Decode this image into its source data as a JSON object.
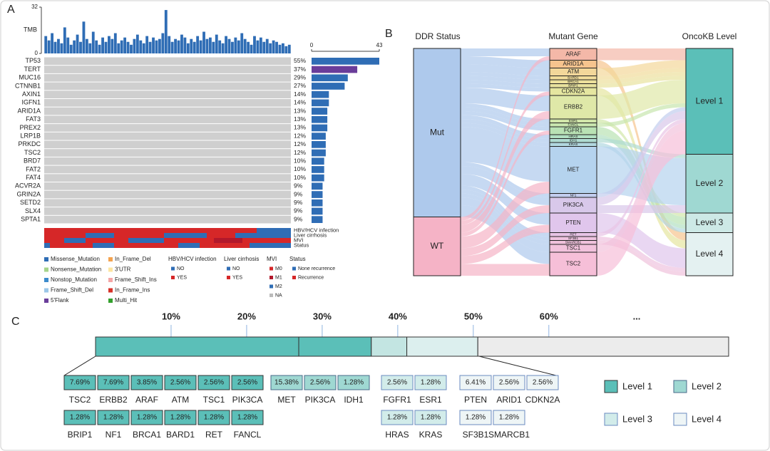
{
  "panel_labels": [
    "A",
    "B",
    "C"
  ],
  "chart_data": [
    {
      "type": "oncoplot",
      "tmb_label": "TMB",
      "tmb_ylim": [
        0,
        32
      ],
      "tmb_yticks": [
        0,
        32
      ],
      "tmb_color": "#2f6db5",
      "tmb_values": [
        12,
        9,
        14,
        8,
        10,
        7,
        18,
        11,
        6,
        9,
        13,
        8,
        22,
        10,
        7,
        15,
        9,
        6,
        11,
        8,
        12,
        10,
        14,
        7,
        9,
        11,
        8,
        6,
        10,
        13,
        9,
        7,
        12,
        8,
        11,
        9,
        10,
        14,
        30,
        12,
        8,
        10,
        9,
        13,
        11,
        7,
        10,
        8,
        12,
        9,
        15,
        10,
        11,
        8,
        13,
        9,
        7,
        12,
        10,
        8,
        11,
        9,
        14,
        10,
        8,
        6,
        12,
        9,
        11,
        8,
        10,
        7,
        9,
        8,
        6,
        7,
        5,
        6
      ],
      "genes": [
        "TP53",
        "TERT",
        "MUC16",
        "CTNNB1",
        "AXIN1",
        "IGFN1",
        "ARID1A",
        "FAT3",
        "PREX2",
        "LRP1B",
        "PRKDC",
        "TSC2",
        "BRD7",
        "FAT2",
        "FAT4",
        "ACVR2A",
        "GRIN2A",
        "SETD2",
        "SLX4",
        "SPTA1"
      ],
      "values": [
        55,
        37,
        29,
        27,
        14,
        14,
        13,
        13,
        13,
        12,
        12,
        12,
        10,
        10,
        10,
        9,
        9,
        9,
        9,
        9
      ],
      "value_labels": [
        "55%",
        "37%",
        "29%",
        "27%",
        "14%",
        "14%",
        "13%",
        "13%",
        "13%",
        "12%",
        "12%",
        "12%",
        "10%",
        "10%",
        "10%",
        "9%",
        "9%",
        "9%",
        "9%",
        "9%"
      ],
      "counts": [
        43,
        29,
        23,
        21,
        11,
        11,
        10,
        10,
        10,
        9,
        9,
        9,
        8,
        8,
        8,
        7,
        7,
        7,
        7,
        7
      ],
      "count_colors": [
        "#2f6db5",
        "#6a3d9a",
        "#2f6db5",
        "#2f6db5",
        "#2f6db5",
        "#2f6db5",
        "#2f6db5",
        "#2f6db5",
        "#2f6db5",
        "#2f6db5",
        "#2f6db5",
        "#2f6db5",
        "#2f6db5",
        "#2f6db5",
        "#2f6db5",
        "#2f6db5",
        "#2f6db5",
        "#2f6db5",
        "#2f6db5",
        "#2f6db5"
      ],
      "count_xlim": [
        0,
        43
      ],
      "count_xticks": [
        0,
        43
      ],
      "track_labels": [
        "HBV/HCV infection",
        "Liver cirrhosis",
        "MVI",
        "Status"
      ],
      "mutation_types": [
        {
          "name": "Missense_Mutation",
          "color": "#2f6db5"
        },
        {
          "name": "Nonsense_Mutation",
          "color": "#a6d48a"
        },
        {
          "name": "Nonstop_Mutation",
          "color": "#3c8bcc"
        },
        {
          "name": "Frame_Shift_Del",
          "color": "#9cc7e8"
        },
        {
          "name": "5'Flank",
          "color": "#6a3d9a"
        },
        {
          "name": "In_Frame_Del",
          "color": "#f4a34f"
        },
        {
          "name": "3'UTR",
          "color": "#fde5a0"
        },
        {
          "name": "Frame_Shift_Ins",
          "color": "#f4a6a6"
        },
        {
          "name": "In_Frame_Ins",
          "color": "#d73027"
        },
        {
          "name": "Multi_Hit",
          "color": "#33a02c"
        }
      ],
      "annotation_legends": [
        {
          "title": "HBV/HCV infection",
          "items": [
            {
              "name": "NO",
              "color": "#2f6db5"
            },
            {
              "name": "YES",
              "color": "#d62728"
            }
          ]
        },
        {
          "title": "Liver cirrhosis",
          "items": [
            {
              "name": "NO",
              "color": "#2f6db5"
            },
            {
              "name": "YES",
              "color": "#d62728"
            }
          ]
        },
        {
          "title": "MVI",
          "items": [
            {
              "name": "M0",
              "color": "#d62728"
            },
            {
              "name": "M1",
              "color": "#b2182b"
            },
            {
              "name": "M2",
              "color": "#2f6db5"
            },
            {
              "name": "NA",
              "color": "#bbbbbb"
            }
          ]
        },
        {
          "title": "Status",
          "items": [
            {
              "name": "None recurrence",
              "color": "#2f6db5"
            },
            {
              "name": "Recurrence",
              "color": "#d62728"
            }
          ]
        }
      ]
    },
    {
      "type": "sankey",
      "columns": [
        {
          "title": "DDR Status",
          "nodes": [
            {
              "name": "Mut",
              "color": "#aec9ec"
            },
            {
              "name": "WT",
              "color": "#f5b3c6"
            }
          ]
        },
        {
          "title": "Mutant Gene",
          "nodes": [
            {
              "name": "ARAF",
              "color": "#f4b8a8"
            },
            {
              "name": "ARID1A",
              "color": "#f6c48e"
            },
            {
              "name": "ATM",
              "color": "#f3d79a"
            },
            {
              "name": "BARD1",
              "color": "#f1dc9a"
            },
            {
              "name": "BRCA1",
              "color": "#ece09c"
            },
            {
              "name": "BRIP1",
              "color": "#e8e29e"
            },
            {
              "name": "CDKN2A",
              "color": "#e5e6a0"
            },
            {
              "name": "ERBB2",
              "color": "#dfe8a8"
            },
            {
              "name": "ESR1",
              "color": "#d2e7aa"
            },
            {
              "name": "FANCL",
              "color": "#c8e5ae"
            },
            {
              "name": "FGFR1",
              "color": "#b9e2b4"
            },
            {
              "name": "HRAS",
              "color": "#b2e0c2"
            },
            {
              "name": "IDH1",
              "color": "#b0dcd2"
            },
            {
              "name": "KRAS",
              "color": "#b2d8e0"
            },
            {
              "name": "MET",
              "color": "#b5d3ee"
            },
            {
              "name": "NF1",
              "color": "#c2cdee"
            },
            {
              "name": "PIK3CA",
              "color": "#d8c8ea"
            },
            {
              "name": "PTEN",
              "color": "#e0c6ec"
            },
            {
              "name": "RET",
              "color": "#e8c4e6"
            },
            {
              "name": "SF3B1",
              "color": "#eec3e0"
            },
            {
              "name": "SMARCB1",
              "color": "#f0c2dc"
            },
            {
              "name": "TSC1",
              "color": "#f2c2dc"
            },
            {
              "name": "TSC2",
              "color": "#f6bfd8"
            }
          ]
        },
        {
          "title": "OncoKB Level",
          "nodes": [
            {
              "name": "Level 1",
              "color": "#5bbfb8"
            },
            {
              "name": "Level 2",
              "color": "#9fd8d2"
            },
            {
              "name": "Level 3",
              "color": "#cde9e6"
            },
            {
              "name": "Level 4",
              "color": "#e4f1f1"
            }
          ]
        }
      ],
      "links": [
        [
          "Mut",
          "ARAF",
          2
        ],
        [
          "Mut",
          "ARID1A",
          2
        ],
        [
          "Mut",
          "ATM",
          2
        ],
        [
          "Mut",
          "BARD1",
          1
        ],
        [
          "Mut",
          "BRCA1",
          1
        ],
        [
          "Mut",
          "BRIP1",
          1
        ],
        [
          "Mut",
          "CDKN2A",
          1
        ],
        [
          "Mut",
          "ERBB2",
          4
        ],
        [
          "Mut",
          "ESR1",
          1
        ],
        [
          "Mut",
          "FANCL",
          1
        ],
        [
          "Mut",
          "FGFR1",
          1
        ],
        [
          "Mut",
          "HRAS",
          1
        ],
        [
          "Mut",
          "IDH1",
          1
        ],
        [
          "Mut",
          "KRAS",
          1
        ],
        [
          "Mut",
          "MET",
          9
        ],
        [
          "Mut",
          "NF1",
          1
        ],
        [
          "Mut",
          "PIK3CA",
          2
        ],
        [
          "Mut",
          "PTEN",
          3
        ],
        [
          "Mut",
          "RET",
          1
        ],
        [
          "Mut",
          "SF3B1",
          1
        ],
        [
          "Mut",
          "SMARCB1",
          1
        ],
        [
          "Mut",
          "TSC1",
          2
        ],
        [
          "Mut",
          "TSC2",
          3
        ],
        [
          "WT",
          "ARAF",
          1
        ],
        [
          "WT",
          "CDKN2A",
          1
        ],
        [
          "WT",
          "ERBB2",
          2
        ],
        [
          "WT",
          "FGFR1",
          1
        ],
        [
          "WT",
          "MET",
          3
        ],
        [
          "WT",
          "PIK3CA",
          2
        ],
        [
          "WT",
          "PTEN",
          2
        ],
        [
          "WT",
          "TSC2",
          3
        ],
        [
          "ARAF",
          "Level 1",
          3
        ],
        [
          "ARID1A",
          "Level 4",
          2
        ],
        [
          "ATM",
          "Level 1",
          2
        ],
        [
          "BARD1",
          "Level 1",
          1
        ],
        [
          "BRCA1",
          "Level 1",
          1
        ],
        [
          "BRIP1",
          "Level 1",
          1
        ],
        [
          "CDKN2A",
          "Level 4",
          2
        ],
        [
          "ERBB2",
          "Level 1",
          6
        ],
        [
          "ESR1",
          "Level 3",
          1
        ],
        [
          "FANCL",
          "Level 1",
          1
        ],
        [
          "FGFR1",
          "Level 3",
          2
        ],
        [
          "HRAS",
          "Level 3",
          1
        ],
        [
          "IDH1",
          "Level 2",
          1
        ],
        [
          "KRAS",
          "Level 3",
          1
        ],
        [
          "MET",
          "Level 2",
          12
        ],
        [
          "NF1",
          "Level 1",
          1
        ],
        [
          "PIK3CA",
          "Level 1",
          2
        ],
        [
          "PIK3CA",
          "Level 2",
          2
        ],
        [
          "PTEN",
          "Level 4",
          5
        ],
        [
          "RET",
          "Level 1",
          1
        ],
        [
          "SF3B1",
          "Level 4",
          1
        ],
        [
          "SMARCB1",
          "Level 4",
          1
        ],
        [
          "TSC1",
          "Level 1",
          2
        ],
        [
          "TSC2",
          "Level 1",
          6
        ]
      ]
    },
    {
      "type": "level_bar",
      "xlim": [
        0,
        83.8
      ],
      "xticks": [
        {
          "value": 10,
          "label": "10%"
        },
        {
          "value": 20,
          "label": "20%"
        },
        {
          "value": 30,
          "label": "30%"
        },
        {
          "value": 40,
          "label": "40%"
        },
        {
          "value": 50,
          "label": "50%"
        },
        {
          "value": 60,
          "label": "60%"
        }
      ],
      "more_label": "...",
      "segments": [
        {
          "value": 26.9,
          "color": "#5bbfb8"
        },
        {
          "value": 9.6,
          "color": "#5bbfb8"
        },
        {
          "value": 4.7,
          "color": "#c3e5e2"
        },
        {
          "value": 9.4,
          "color": "#dcefee"
        },
        {
          "value": 33.2,
          "color": "#ececec"
        }
      ],
      "groups": [
        {
          "fill": "#5bbfb8",
          "stroke": "#333333",
          "genes": [
            "TSC2",
            "ERBB2",
            "ARAF",
            "ATM",
            "TSC1",
            "PIK3CA",
            "BRIP1",
            "NF1",
            "BRCA1",
            "BARD1",
            "RET",
            "FANCL"
          ],
          "values": [
            7.69,
            7.69,
            3.85,
            2.56,
            2.56,
            2.56,
            1.28,
            1.28,
            1.28,
            1.28,
            1.28,
            1.28
          ],
          "value_labels": [
            "7.69%",
            "7.69%",
            "3.85%",
            "2.56%",
            "2.56%",
            "2.56%",
            "1.28%",
            "1.28%",
            "1.28%",
            "1.28%",
            "1.28%",
            "1.28%"
          ]
        },
        {
          "fill": "#9fd8d2",
          "stroke": "#4a6a8a",
          "genes": [
            "MET",
            "PIK3CA",
            "IDH1"
          ],
          "values": [
            15.38,
            2.56,
            1.28
          ],
          "value_labels": [
            "15.38%",
            "2.56%",
            "1.28%"
          ]
        },
        {
          "fill": "#d2ecea",
          "stroke": "#6b8bc0",
          "genes": [
            "FGFR1",
            "ESR1",
            "HRAS",
            "KRAS"
          ],
          "values": [
            2.56,
            1.28,
            1.28,
            1.28
          ],
          "value_labels": [
            "2.56%",
            "1.28%",
            "1.28%",
            "1.28%"
          ]
        },
        {
          "fill": "#eef5f6",
          "stroke": "#6b8bc0",
          "genes": [
            "PTEN",
            "ARID1",
            "CDKN2A",
            "SF3B1",
            "SMARCB1"
          ],
          "values": [
            6.41,
            2.56,
            2.56,
            1.28,
            1.28
          ],
          "value_labels": [
            "6.41%",
            "2.56%",
            "2.56%",
            "1.28%",
            "1.28%"
          ]
        }
      ],
      "legend": [
        {
          "name": "Level 1",
          "fill": "#5bbfb8",
          "stroke": "#333333"
        },
        {
          "name": "Level 2",
          "fill": "#9fd8d2",
          "stroke": "#4a6a8a"
        },
        {
          "name": "Level 3",
          "fill": "#d2ecea",
          "stroke": "#6b8bc0"
        },
        {
          "name": "Level 4",
          "fill": "#eef5f6",
          "stroke": "#6b8bc0"
        }
      ]
    }
  ]
}
